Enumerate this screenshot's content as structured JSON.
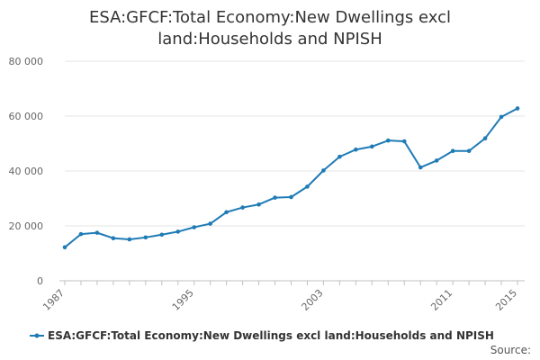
{
  "chart_data": {
    "type": "line",
    "title_lines": [
      "ESA:GFCF:Total Economy:New Dwellings excl",
      "land:Households and NPISH"
    ],
    "xlabel": "",
    "ylabel": "",
    "ylim": [
      0,
      80000
    ],
    "y_ticks": [
      0,
      20000,
      40000,
      60000,
      80000
    ],
    "y_tick_labels": [
      "0",
      "20 000",
      "40 000",
      "60 000",
      "80 000"
    ],
    "x_ticks": [
      1987,
      1995,
      2003,
      2011,
      2015
    ],
    "x_tick_labels": [
      "1987",
      "1995",
      "2003",
      "2011",
      "2015"
    ],
    "grid": true,
    "legend_position": "bottom",
    "series": [
      {
        "name": "ESA:GFCF:Total Economy:New Dwellings excl land:Households and NPISH",
        "color": "#1f7bb6",
        "x": [
          1987,
          1988,
          1989,
          1990,
          1991,
          1992,
          1993,
          1994,
          1995,
          1996,
          1997,
          1998,
          1999,
          2000,
          2001,
          2002,
          2003,
          2004,
          2005,
          2006,
          2007,
          2008,
          2009,
          2010,
          2011,
          2012,
          2013,
          2014,
          2015
        ],
        "values": [
          12200,
          17000,
          17500,
          15500,
          15100,
          15800,
          16800,
          17900,
          19500,
          20800,
          25000,
          26700,
          27800,
          30300,
          30500,
          34300,
          40200,
          45200,
          47800,
          48900,
          51100,
          50800,
          41300,
          43800,
          47300,
          47300,
          51900,
          59700,
          62800
        ]
      }
    ],
    "source_label": "Source:"
  }
}
